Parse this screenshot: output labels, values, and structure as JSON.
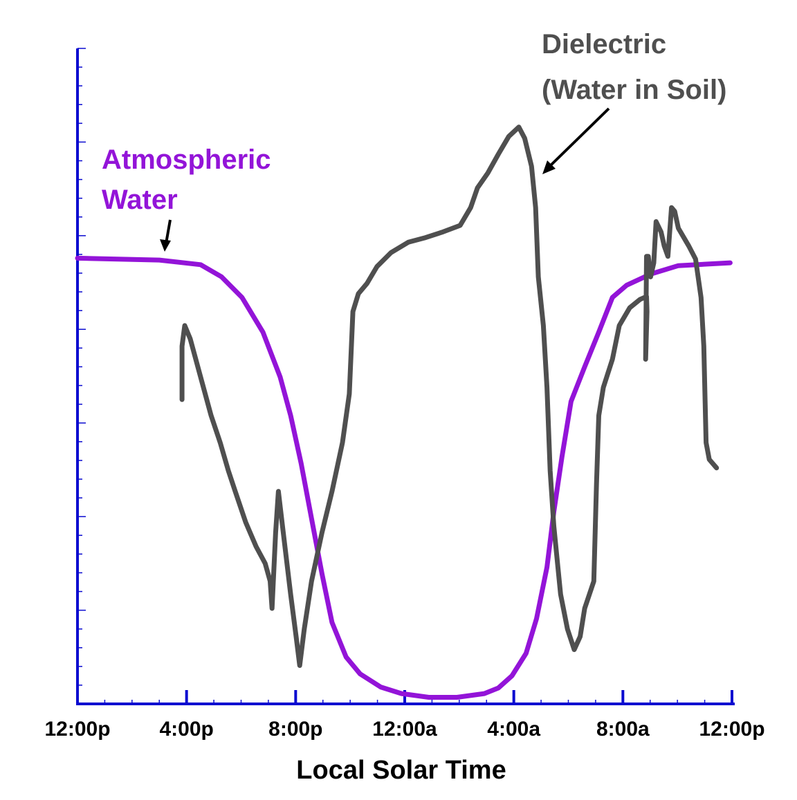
{
  "chart_data": {
    "type": "line",
    "title": "",
    "xlabel": "Local Solar Time",
    "ylabel": "",
    "x_tick_labels": [
      "12:00p",
      "4:00p",
      "8:00p",
      "12:00a",
      "4:00a",
      "8:00a",
      "12:00p"
    ],
    "xlim": [
      "12:00p",
      "12:00p"
    ],
    "ylim": [
      0,
      7
    ],
    "y_tick_labels_shown": false,
    "grid": false,
    "colors": {
      "axis": "#0a0ad0",
      "atmospheric": "#9314d8",
      "dielectric": "#4f4f4f",
      "arrow": "#000000"
    },
    "annotations": {
      "atmospheric": [
        "Atmospheric",
        "Water"
      ],
      "dielectric": [
        "Dielectric",
        "(Water in Soil)"
      ]
    },
    "series": [
      {
        "name": "Atmospheric Water",
        "color": "#9314d8",
        "points": [
          [
            "12:00",
            4.76
          ],
          [
            "15:00",
            4.74
          ],
          [
            "16:31",
            4.69
          ],
          [
            "17:17",
            4.56
          ],
          [
            "18:02",
            4.34
          ],
          [
            "18:48",
            3.97
          ],
          [
            "19:26",
            3.49
          ],
          [
            "19:49",
            3.08
          ],
          [
            "20:12",
            2.57
          ],
          [
            "20:35",
            1.98
          ],
          [
            "20:58",
            1.39
          ],
          [
            "21:20",
            0.87
          ],
          [
            "21:51",
            0.5
          ],
          [
            "22:22",
            0.32
          ],
          [
            "23:07",
            0.18
          ],
          [
            "23:53",
            0.11
          ],
          [
            "00:53",
            0.07
          ],
          [
            "01:55",
            0.07
          ],
          [
            "02:55",
            0.11
          ],
          [
            "03:26",
            0.17
          ],
          [
            "03:56",
            0.3
          ],
          [
            "04:27",
            0.54
          ],
          [
            "04:50",
            0.91
          ],
          [
            "05:13",
            1.46
          ],
          [
            "05:28",
            2.05
          ],
          [
            "05:46",
            2.64
          ],
          [
            "06:06",
            3.23
          ],
          [
            "06:36",
            3.6
          ],
          [
            "07:07",
            3.97
          ],
          [
            "07:37",
            4.34
          ],
          [
            "08:08",
            4.47
          ],
          [
            "09:01",
            4.59
          ],
          [
            "10:02",
            4.68
          ],
          [
            "11:56",
            4.71
          ]
        ]
      },
      {
        "name": "Dielectric (Water in Soil)",
        "color": "#4f4f4f",
        "points": [
          [
            "15:50",
            3.25
          ],
          [
            "15:50",
            3.82
          ],
          [
            "15:56",
            4.04
          ],
          [
            "16:08",
            3.9
          ],
          [
            "16:31",
            3.49
          ],
          [
            "16:54",
            3.08
          ],
          [
            "17:14",
            2.79
          ],
          [
            "17:32",
            2.49
          ],
          [
            "17:47",
            2.27
          ],
          [
            "18:10",
            1.94
          ],
          [
            "18:33",
            1.68
          ],
          [
            "18:53",
            1.5
          ],
          [
            "19:04",
            1.31
          ],
          [
            "19:08",
            1.02
          ],
          [
            "19:16",
            1.83
          ],
          [
            "19:22",
            2.27
          ],
          [
            "19:31",
            1.9
          ],
          [
            "19:49",
            1.17
          ],
          [
            "20:01",
            0.72
          ],
          [
            "20:09",
            0.41
          ],
          [
            "20:19",
            0.8
          ],
          [
            "20:35",
            1.31
          ],
          [
            "20:58",
            1.83
          ],
          [
            "21:20",
            2.27
          ],
          [
            "21:43",
            2.79
          ],
          [
            "21:58",
            3.31
          ],
          [
            "22:06",
            4.19
          ],
          [
            "22:18",
            4.38
          ],
          [
            "22:37",
            4.49
          ],
          [
            "22:59",
            4.67
          ],
          [
            "23:30",
            4.82
          ],
          [
            "00:08",
            4.93
          ],
          [
            "00:46",
            4.98
          ],
          [
            "01:24",
            5.04
          ],
          [
            "02:02",
            5.11
          ],
          [
            "02:25",
            5.3
          ],
          [
            "02:40",
            5.51
          ],
          [
            "03:03",
            5.67
          ],
          [
            "03:26",
            5.87
          ],
          [
            "03:49",
            6.06
          ],
          [
            "04:11",
            6.16
          ],
          [
            "04:24",
            6.04
          ],
          [
            "04:39",
            5.74
          ],
          [
            "04:48",
            5.3
          ],
          [
            "04:54",
            4.56
          ],
          [
            "05:05",
            4.04
          ],
          [
            "05:13",
            3.38
          ],
          [
            "05:20",
            2.49
          ],
          [
            "05:28",
            1.9
          ],
          [
            "05:43",
            1.17
          ],
          [
            "05:58",
            0.8
          ],
          [
            "06:13",
            0.58
          ],
          [
            "06:26",
            0.72
          ],
          [
            "06:36",
            1.02
          ],
          [
            "06:56",
            1.31
          ],
          [
            "07:02",
            2.35
          ],
          [
            "07:07",
            3.08
          ],
          [
            "07:17",
            3.38
          ],
          [
            "07:37",
            3.68
          ],
          [
            "07:52",
            4.04
          ],
          [
            "08:15",
            4.23
          ],
          [
            "08:38",
            4.32
          ],
          [
            "08:52",
            4.35
          ],
          [
            "08:53",
            4.19
          ],
          [
            "08:50",
            3.68
          ],
          [
            "08:52",
            4.78
          ],
          [
            "08:56",
            4.78
          ],
          [
            "09:01",
            4.56
          ],
          [
            "09:08",
            4.71
          ],
          [
            "09:13",
            5.15
          ],
          [
            "09:24",
            5.04
          ],
          [
            "09:31",
            4.89
          ],
          [
            "09:39",
            4.78
          ],
          [
            "09:47",
            5.3
          ],
          [
            "09:54",
            5.26
          ],
          [
            "10:02",
            5.08
          ],
          [
            "10:25",
            4.89
          ],
          [
            "10:40",
            4.75
          ],
          [
            "10:52",
            4.34
          ],
          [
            "10:58",
            3.82
          ],
          [
            "11:03",
            2.79
          ],
          [
            "11:10",
            2.61
          ],
          [
            "11:26",
            2.52
          ]
        ]
      }
    ]
  }
}
